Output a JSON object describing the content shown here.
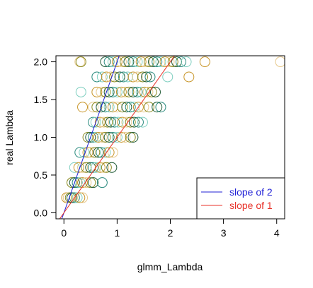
{
  "chart_data": {
    "type": "scatter",
    "title": "",
    "xlabel": "glmm_Lambda",
    "ylabel": "real Lambda",
    "xlim": [
      -0.15,
      4.15
    ],
    "ylim": [
      -0.08,
      2.08
    ],
    "x_ticks": [
      0,
      1,
      2,
      3,
      4
    ],
    "x_tick_labels": [
      "0",
      "1",
      "2",
      "3",
      "4"
    ],
    "y_ticks": [
      0.0,
      0.5,
      1.0,
      1.5,
      2.0
    ],
    "y_tick_labels": [
      "0.0",
      "0.5",
      "1.0",
      "1.5",
      "2.0"
    ],
    "grid": false,
    "legend_position": "bottom-right",
    "point_colors": [
      "#1f5a35",
      "#2a8a7e",
      "#7fcfc0",
      "#c8962a",
      "#e7c88a",
      "#8a8a20"
    ],
    "series": [
      {
        "type": "scatter",
        "marker": "open-circle",
        "points": [
          [
            0.05,
            0.2
          ],
          [
            0.08,
            0.2
          ],
          [
            0.12,
            0.2
          ],
          [
            0.15,
            0.2
          ],
          [
            0.2,
            0.2
          ],
          [
            0.25,
            0.2
          ],
          [
            0.3,
            0.2
          ],
          [
            0.35,
            0.2
          ],
          [
            0.15,
            0.4
          ],
          [
            0.2,
            0.4
          ],
          [
            0.25,
            0.4
          ],
          [
            0.3,
            0.4
          ],
          [
            0.35,
            0.4
          ],
          [
            0.42,
            0.4
          ],
          [
            0.5,
            0.4
          ],
          [
            0.55,
            0.4
          ],
          [
            0.72,
            0.4
          ],
          [
            0.2,
            0.6
          ],
          [
            0.28,
            0.6
          ],
          [
            0.35,
            0.6
          ],
          [
            0.42,
            0.6
          ],
          [
            0.5,
            0.6
          ],
          [
            0.55,
            0.6
          ],
          [
            0.6,
            0.6
          ],
          [
            0.68,
            0.6
          ],
          [
            0.75,
            0.6
          ],
          [
            0.8,
            0.6
          ],
          [
            0.9,
            0.6
          ],
          [
            0.3,
            0.8
          ],
          [
            0.38,
            0.8
          ],
          [
            0.45,
            0.8
          ],
          [
            0.5,
            0.8
          ],
          [
            0.58,
            0.8
          ],
          [
            0.65,
            0.8
          ],
          [
            0.7,
            0.8
          ],
          [
            0.78,
            0.8
          ],
          [
            0.85,
            0.8
          ],
          [
            0.92,
            0.8
          ],
          [
            0.45,
            1.0
          ],
          [
            0.5,
            1.0
          ],
          [
            0.55,
            1.0
          ],
          [
            0.6,
            1.0
          ],
          [
            0.65,
            1.0
          ],
          [
            0.72,
            1.0
          ],
          [
            0.78,
            1.0
          ],
          [
            0.85,
            1.0
          ],
          [
            0.92,
            1.0
          ],
          [
            1.0,
            1.0
          ],
          [
            1.08,
            1.0
          ],
          [
            1.15,
            1.0
          ],
          [
            1.25,
            1.0
          ],
          [
            1.3,
            1.0
          ],
          [
            0.55,
            1.2
          ],
          [
            0.6,
            1.2
          ],
          [
            0.68,
            1.2
          ],
          [
            0.75,
            1.2
          ],
          [
            0.82,
            1.2
          ],
          [
            0.88,
            1.2
          ],
          [
            0.95,
            1.2
          ],
          [
            1.02,
            1.2
          ],
          [
            1.1,
            1.2
          ],
          [
            1.18,
            1.2
          ],
          [
            1.25,
            1.2
          ],
          [
            1.32,
            1.2
          ],
          [
            1.4,
            1.2
          ],
          [
            1.48,
            1.2
          ],
          [
            0.35,
            1.4
          ],
          [
            0.55,
            1.4
          ],
          [
            0.62,
            1.4
          ],
          [
            0.7,
            1.4
          ],
          [
            0.78,
            1.4
          ],
          [
            0.85,
            1.4
          ],
          [
            0.92,
            1.4
          ],
          [
            1.0,
            1.4
          ],
          [
            1.1,
            1.4
          ],
          [
            1.18,
            1.4
          ],
          [
            1.25,
            1.4
          ],
          [
            1.32,
            1.4
          ],
          [
            1.4,
            1.4
          ],
          [
            1.5,
            1.4
          ],
          [
            1.6,
            1.4
          ],
          [
            1.75,
            1.4
          ],
          [
            1.82,
            1.4
          ],
          [
            0.32,
            1.6
          ],
          [
            0.62,
            1.6
          ],
          [
            0.7,
            1.6
          ],
          [
            0.78,
            1.6
          ],
          [
            0.85,
            1.6
          ],
          [
            0.92,
            1.6
          ],
          [
            1.0,
            1.6
          ],
          [
            1.08,
            1.6
          ],
          [
            1.15,
            1.6
          ],
          [
            1.22,
            1.6
          ],
          [
            1.3,
            1.6
          ],
          [
            1.38,
            1.6
          ],
          [
            1.45,
            1.6
          ],
          [
            1.52,
            1.6
          ],
          [
            1.58,
            1.6
          ],
          [
            1.65,
            1.6
          ],
          [
            1.72,
            1.6
          ],
          [
            0.62,
            1.8
          ],
          [
            0.72,
            1.8
          ],
          [
            0.8,
            1.8
          ],
          [
            0.88,
            1.8
          ],
          [
            0.95,
            1.8
          ],
          [
            1.05,
            1.8
          ],
          [
            1.12,
            1.8
          ],
          [
            1.2,
            1.8
          ],
          [
            1.3,
            1.8
          ],
          [
            1.38,
            1.8
          ],
          [
            1.48,
            1.8
          ],
          [
            1.55,
            1.8
          ],
          [
            1.62,
            1.8
          ],
          [
            1.95,
            1.8
          ],
          [
            2.35,
            1.8
          ],
          [
            0.3,
            2.0
          ],
          [
            0.32,
            2.0
          ],
          [
            0.78,
            2.0
          ],
          [
            0.85,
            2.0
          ],
          [
            0.92,
            2.0
          ],
          [
            1.0,
            2.0
          ],
          [
            1.08,
            2.0
          ],
          [
            1.15,
            2.0
          ],
          [
            1.22,
            2.0
          ],
          [
            1.3,
            2.0
          ],
          [
            1.38,
            2.0
          ],
          [
            1.45,
            2.0
          ],
          [
            1.52,
            2.0
          ],
          [
            1.6,
            2.0
          ],
          [
            1.68,
            2.0
          ],
          [
            1.75,
            2.0
          ],
          [
            1.82,
            2.0
          ],
          [
            1.9,
            2.0
          ],
          [
            1.98,
            2.0
          ],
          [
            2.05,
            2.0
          ],
          [
            2.12,
            2.0
          ],
          [
            2.2,
            2.0
          ],
          [
            2.3,
            2.0
          ],
          [
            2.65,
            2.0
          ],
          [
            4.07,
            2.0
          ]
        ]
      },
      {
        "type": "line",
        "name": "slope of 2",
        "color": "#1f1fd6",
        "slope": 2,
        "intercept": 0
      },
      {
        "type": "line",
        "name": "slope of 1",
        "color": "#e8322a",
        "slope": 1,
        "intercept": 0
      }
    ]
  }
}
